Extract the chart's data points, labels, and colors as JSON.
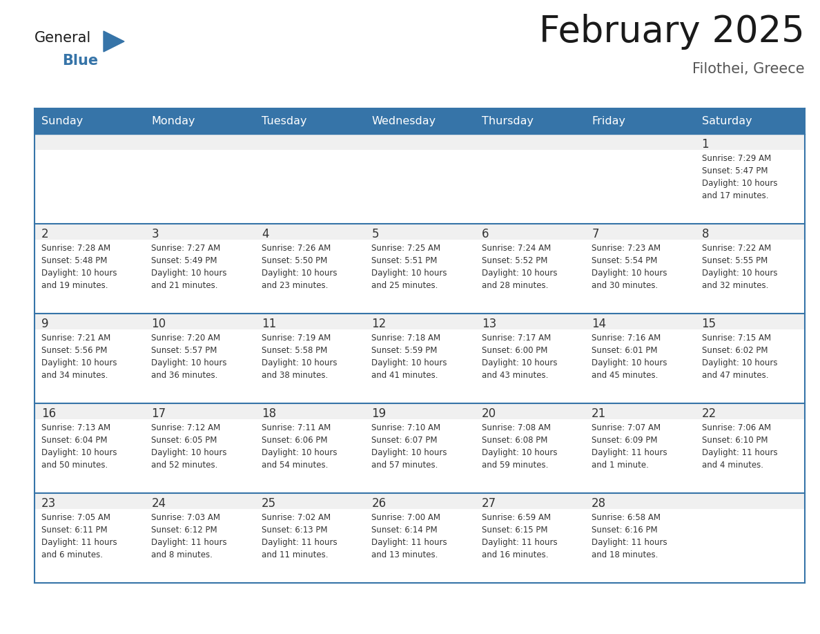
{
  "title": "February 2025",
  "subtitle": "Filothei, Greece",
  "header_color": "#3674A8",
  "header_text_color": "#FFFFFF",
  "row_divider_color": "#3674A8",
  "day_number_color": "#333333",
  "info_text_color": "#333333",
  "row_top_bg": "#EEEEEE",
  "cell_bg": "#FFFFFF",
  "weekdays": [
    "Sunday",
    "Monday",
    "Tuesday",
    "Wednesday",
    "Thursday",
    "Friday",
    "Saturday"
  ],
  "days_data": [
    {
      "day": 1,
      "col": 6,
      "row": 0,
      "sunrise": "7:29 AM",
      "sunset": "5:47 PM",
      "daylight_line1": "Daylight: 10 hours",
      "daylight_line2": "and 17 minutes."
    },
    {
      "day": 2,
      "col": 0,
      "row": 1,
      "sunrise": "7:28 AM",
      "sunset": "5:48 PM",
      "daylight_line1": "Daylight: 10 hours",
      "daylight_line2": "and 19 minutes."
    },
    {
      "day": 3,
      "col": 1,
      "row": 1,
      "sunrise": "7:27 AM",
      "sunset": "5:49 PM",
      "daylight_line1": "Daylight: 10 hours",
      "daylight_line2": "and 21 minutes."
    },
    {
      "day": 4,
      "col": 2,
      "row": 1,
      "sunrise": "7:26 AM",
      "sunset": "5:50 PM",
      "daylight_line1": "Daylight: 10 hours",
      "daylight_line2": "and 23 minutes."
    },
    {
      "day": 5,
      "col": 3,
      "row": 1,
      "sunrise": "7:25 AM",
      "sunset": "5:51 PM",
      "daylight_line1": "Daylight: 10 hours",
      "daylight_line2": "and 25 minutes."
    },
    {
      "day": 6,
      "col": 4,
      "row": 1,
      "sunrise": "7:24 AM",
      "sunset": "5:52 PM",
      "daylight_line1": "Daylight: 10 hours",
      "daylight_line2": "and 28 minutes."
    },
    {
      "day": 7,
      "col": 5,
      "row": 1,
      "sunrise": "7:23 AM",
      "sunset": "5:54 PM",
      "daylight_line1": "Daylight: 10 hours",
      "daylight_line2": "and 30 minutes."
    },
    {
      "day": 8,
      "col": 6,
      "row": 1,
      "sunrise": "7:22 AM",
      "sunset": "5:55 PM",
      "daylight_line1": "Daylight: 10 hours",
      "daylight_line2": "and 32 minutes."
    },
    {
      "day": 9,
      "col": 0,
      "row": 2,
      "sunrise": "7:21 AM",
      "sunset": "5:56 PM",
      "daylight_line1": "Daylight: 10 hours",
      "daylight_line2": "and 34 minutes."
    },
    {
      "day": 10,
      "col": 1,
      "row": 2,
      "sunrise": "7:20 AM",
      "sunset": "5:57 PM",
      "daylight_line1": "Daylight: 10 hours",
      "daylight_line2": "and 36 minutes."
    },
    {
      "day": 11,
      "col": 2,
      "row": 2,
      "sunrise": "7:19 AM",
      "sunset": "5:58 PM",
      "daylight_line1": "Daylight: 10 hours",
      "daylight_line2": "and 38 minutes."
    },
    {
      "day": 12,
      "col": 3,
      "row": 2,
      "sunrise": "7:18 AM",
      "sunset": "5:59 PM",
      "daylight_line1": "Daylight: 10 hours",
      "daylight_line2": "and 41 minutes."
    },
    {
      "day": 13,
      "col": 4,
      "row": 2,
      "sunrise": "7:17 AM",
      "sunset": "6:00 PM",
      "daylight_line1": "Daylight: 10 hours",
      "daylight_line2": "and 43 minutes."
    },
    {
      "day": 14,
      "col": 5,
      "row": 2,
      "sunrise": "7:16 AM",
      "sunset": "6:01 PM",
      "daylight_line1": "Daylight: 10 hours",
      "daylight_line2": "and 45 minutes."
    },
    {
      "day": 15,
      "col": 6,
      "row": 2,
      "sunrise": "7:15 AM",
      "sunset": "6:02 PM",
      "daylight_line1": "Daylight: 10 hours",
      "daylight_line2": "and 47 minutes."
    },
    {
      "day": 16,
      "col": 0,
      "row": 3,
      "sunrise": "7:13 AM",
      "sunset": "6:04 PM",
      "daylight_line1": "Daylight: 10 hours",
      "daylight_line2": "and 50 minutes."
    },
    {
      "day": 17,
      "col": 1,
      "row": 3,
      "sunrise": "7:12 AM",
      "sunset": "6:05 PM",
      "daylight_line1": "Daylight: 10 hours",
      "daylight_line2": "and 52 minutes."
    },
    {
      "day": 18,
      "col": 2,
      "row": 3,
      "sunrise": "7:11 AM",
      "sunset": "6:06 PM",
      "daylight_line1": "Daylight: 10 hours",
      "daylight_line2": "and 54 minutes."
    },
    {
      "day": 19,
      "col": 3,
      "row": 3,
      "sunrise": "7:10 AM",
      "sunset": "6:07 PM",
      "daylight_line1": "Daylight: 10 hours",
      "daylight_line2": "and 57 minutes."
    },
    {
      "day": 20,
      "col": 4,
      "row": 3,
      "sunrise": "7:08 AM",
      "sunset": "6:08 PM",
      "daylight_line1": "Daylight: 10 hours",
      "daylight_line2": "and 59 minutes."
    },
    {
      "day": 21,
      "col": 5,
      "row": 3,
      "sunrise": "7:07 AM",
      "sunset": "6:09 PM",
      "daylight_line1": "Daylight: 11 hours",
      "daylight_line2": "and 1 minute."
    },
    {
      "day": 22,
      "col": 6,
      "row": 3,
      "sunrise": "7:06 AM",
      "sunset": "6:10 PM",
      "daylight_line1": "Daylight: 11 hours",
      "daylight_line2": "and 4 minutes."
    },
    {
      "day": 23,
      "col": 0,
      "row": 4,
      "sunrise": "7:05 AM",
      "sunset": "6:11 PM",
      "daylight_line1": "Daylight: 11 hours",
      "daylight_line2": "and 6 minutes."
    },
    {
      "day": 24,
      "col": 1,
      "row": 4,
      "sunrise": "7:03 AM",
      "sunset": "6:12 PM",
      "daylight_line1": "Daylight: 11 hours",
      "daylight_line2": "and 8 minutes."
    },
    {
      "day": 25,
      "col": 2,
      "row": 4,
      "sunrise": "7:02 AM",
      "sunset": "6:13 PM",
      "daylight_line1": "Daylight: 11 hours",
      "daylight_line2": "and 11 minutes."
    },
    {
      "day": 26,
      "col": 3,
      "row": 4,
      "sunrise": "7:00 AM",
      "sunset": "6:14 PM",
      "daylight_line1": "Daylight: 11 hours",
      "daylight_line2": "and 13 minutes."
    },
    {
      "day": 27,
      "col": 4,
      "row": 4,
      "sunrise": "6:59 AM",
      "sunset": "6:15 PM",
      "daylight_line1": "Daylight: 11 hours",
      "daylight_line2": "and 16 minutes."
    },
    {
      "day": 28,
      "col": 5,
      "row": 4,
      "sunrise": "6:58 AM",
      "sunset": "6:16 PM",
      "daylight_line1": "Daylight: 11 hours",
      "daylight_line2": "and 18 minutes."
    }
  ]
}
